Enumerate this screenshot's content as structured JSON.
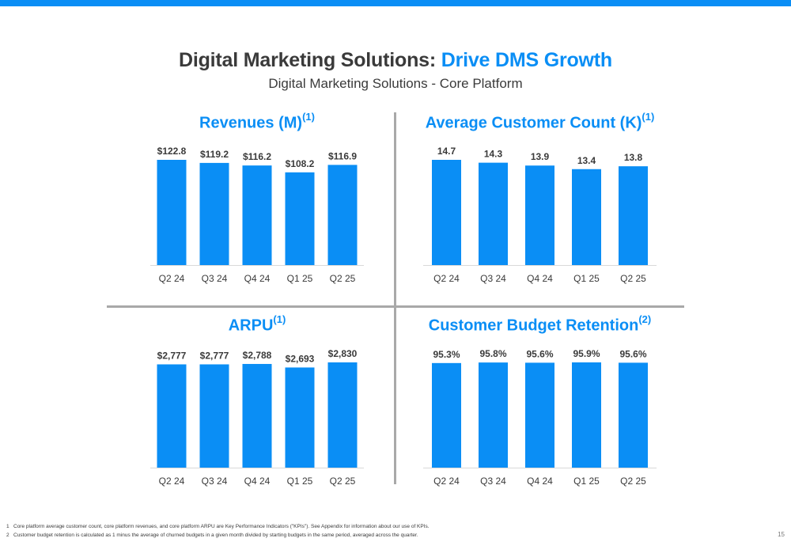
{
  "header": {
    "title_main": "Digital Marketing Solutions: ",
    "title_accent": "Drive DMS Growth",
    "subtitle": "Digital Marketing Solutions - Core Platform"
  },
  "colors": {
    "accent": "#0a8ef5",
    "text": "#3a3a3a",
    "divider": "#a9a9a9"
  },
  "chart_data": [
    {
      "type": "bar",
      "title": "Revenues (M)",
      "title_sup": "(1)",
      "categories": [
        "Q2 24",
        "Q3 24",
        "Q4 24",
        "Q1 25",
        "Q2 25"
      ],
      "values": [
        122.8,
        119.2,
        116.2,
        108.2,
        116.9
      ],
      "labels": [
        "$122.8",
        "$119.2",
        "$116.2",
        "$108.2",
        "$116.9"
      ],
      "ylim": [
        0,
        122.8
      ]
    },
    {
      "type": "bar",
      "title": "Average Customer Count (K)",
      "title_sup": "(1)",
      "categories": [
        "Q2 24",
        "Q3 24",
        "Q4 24",
        "Q1 25",
        "Q2 25"
      ],
      "values": [
        14.7,
        14.3,
        13.9,
        13.4,
        13.8
      ],
      "labels": [
        "14.7",
        "14.3",
        "13.9",
        "13.4",
        "13.8"
      ],
      "ylim": [
        0,
        14.7
      ]
    },
    {
      "type": "bar",
      "title": "ARPU",
      "title_sup": "(1)",
      "categories": [
        "Q2 24",
        "Q3 24",
        "Q4 24",
        "Q1 25",
        "Q2 25"
      ],
      "values": [
        2777,
        2777,
        2788,
        2693,
        2830
      ],
      "labels": [
        "$2,777",
        "$2,777",
        "$2,788",
        "$2,693",
        "$2,830"
      ],
      "ylim": [
        0,
        2830
      ]
    },
    {
      "type": "bar",
      "title": "Customer Budget Retention",
      "title_sup": "(2)",
      "categories": [
        "Q2 24",
        "Q3 24",
        "Q4 24",
        "Q1 25",
        "Q2 25"
      ],
      "values": [
        95.3,
        95.8,
        95.6,
        95.9,
        95.6
      ],
      "labels": [
        "95.3%",
        "95.8%",
        "95.6%",
        "95.9%",
        "95.6%"
      ],
      "ylim": [
        0,
        95.9
      ]
    }
  ],
  "footnotes": [
    {
      "num": "1",
      "text": "Core platform average customer count, core platform revenues, and core platform ARPU are Key Performance Indicators (\"KPIs\"). See Appendix for information about our use of KPIs."
    },
    {
      "num": "2",
      "text": "Customer budget retention is calculated as 1 minus the average of churned budgets in a given month divided by starting budgets in the same period, averaged across the quarter."
    }
  ],
  "page_number": "15"
}
